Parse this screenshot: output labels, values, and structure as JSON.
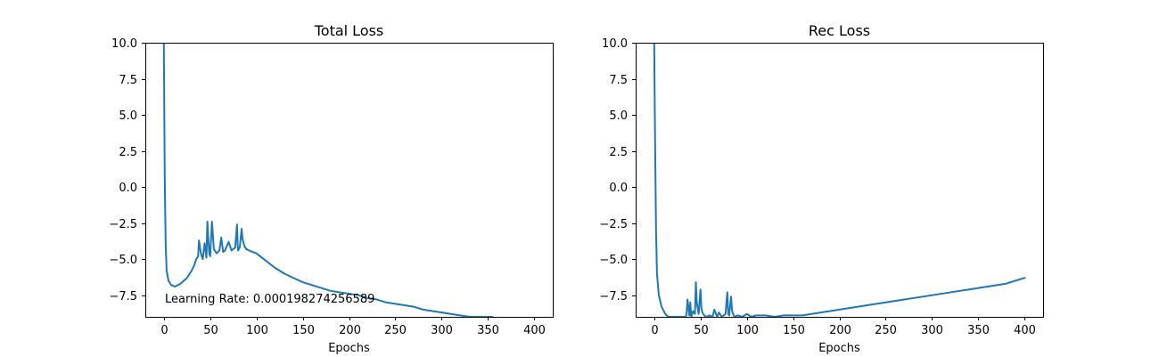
{
  "chart_data": [
    {
      "type": "line",
      "title": "Total Loss",
      "xlabel": "Epochs",
      "ylabel": "",
      "xlim": [
        -20,
        420
      ],
      "ylim": [
        -9.0,
        10.0
      ],
      "xticks": [
        0,
        50,
        100,
        150,
        200,
        250,
        300,
        350,
        400
      ],
      "yticks": [
        -7.5,
        -5.0,
        -2.5,
        0.0,
        2.5,
        5.0,
        7.5,
        10.0
      ],
      "xtick_labels": [
        "0",
        "50",
        "100",
        "150",
        "200",
        "250",
        "300",
        "350",
        "400"
      ],
      "ytick_labels": [
        "−7.5",
        "−5.0",
        "−2.5",
        "0.0",
        "2.5",
        "5.0",
        "7.5",
        "10.0"
      ],
      "annotation": "Learning Rate: 0.000198274256589",
      "grid": false,
      "color": "#1f77b4",
      "series": [
        {
          "x": [
            0,
            1,
            2,
            3,
            5,
            8,
            12,
            18,
            25,
            30,
            33,
            35,
            37,
            38,
            40,
            42,
            44,
            46,
            47,
            49,
            50,
            52,
            54,
            57,
            60,
            62,
            64,
            66,
            70,
            73,
            75,
            77,
            79,
            80,
            82,
            84,
            85,
            87,
            89,
            92,
            96,
            100,
            110,
            120,
            130,
            140,
            150,
            160,
            170,
            180,
            190,
            200,
            210,
            220,
            230,
            240,
            250,
            260,
            270,
            280,
            290,
            300,
            310,
            320,
            330,
            340,
            350,
            355
          ],
          "y": [
            10.0,
            0.5,
            -4.0,
            -5.8,
            -6.5,
            -6.8,
            -6.9,
            -6.7,
            -6.3,
            -5.8,
            -5.4,
            -5.0,
            -4.8,
            -3.7,
            -4.6,
            -5.0,
            -3.9,
            -4.9,
            -2.4,
            -4.6,
            -4.8,
            -2.4,
            -4.3,
            -4.6,
            -4.4,
            -3.5,
            -4.5,
            -4.4,
            -3.8,
            -4.4,
            -4.3,
            -4.2,
            -2.6,
            -4.4,
            -4.2,
            -2.9,
            -3.6,
            -4.1,
            -4.3,
            -4.4,
            -4.5,
            -4.6,
            -5.1,
            -5.6,
            -6.0,
            -6.3,
            -6.6,
            -6.8,
            -7.0,
            -7.2,
            -7.3,
            -7.4,
            -7.5,
            -7.7,
            -7.8,
            -8.0,
            -8.1,
            -8.2,
            -8.3,
            -8.5,
            -8.6,
            -8.7,
            -8.8,
            -8.9,
            -9.0,
            -9.0,
            -9.0,
            -9.0
          ]
        }
      ]
    },
    {
      "type": "line",
      "title": "Rec Loss",
      "xlabel": "Epochs",
      "ylabel": "",
      "xlim": [
        -20,
        420
      ],
      "ylim": [
        -9.0,
        10.0
      ],
      "xticks": [
        0,
        50,
        100,
        150,
        200,
        250,
        300,
        350,
        400
      ],
      "yticks": [
        -7.5,
        -5.0,
        -2.5,
        0.0,
        2.5,
        5.0,
        7.5,
        10.0
      ],
      "xtick_labels": [
        "0",
        "50",
        "100",
        "150",
        "200",
        "250",
        "300",
        "350",
        "400"
      ],
      "ytick_labels": [
        "−7.5",
        "−5.0",
        "−2.5",
        "0.0",
        "2.5",
        "5.0",
        "7.5",
        "10.0"
      ],
      "grid": false,
      "color": "#1f77b4",
      "series": [
        {
          "x": [
            0,
            1,
            2,
            3,
            5,
            8,
            12,
            15,
            20,
            25,
            30,
            34,
            35,
            36,
            38,
            39,
            40,
            42,
            44,
            45,
            46,
            48,
            50,
            51,
            52,
            54,
            56,
            60,
            63,
            65,
            68,
            70,
            73,
            75,
            77,
            79,
            80,
            81,
            83,
            84,
            85,
            87,
            90,
            95,
            100,
            105,
            110,
            120,
            130,
            140,
            150,
            160,
            170,
            180,
            190,
            200,
            210,
            220,
            230,
            240,
            250,
            260,
            270,
            280,
            290,
            300,
            310,
            320,
            330,
            340,
            350,
            360,
            370,
            380,
            390,
            400
          ],
          "y": [
            10.0,
            3.0,
            -3.0,
            -6.0,
            -7.5,
            -8.3,
            -8.8,
            -9.0,
            -9.0,
            -9.0,
            -9.0,
            -9.0,
            -8.8,
            -7.8,
            -8.9,
            -8.0,
            -9.0,
            -8.6,
            -8.8,
            -6.6,
            -8.0,
            -8.8,
            -7.1,
            -8.4,
            -8.7,
            -8.9,
            -9.0,
            -8.9,
            -9.0,
            -8.5,
            -9.0,
            -8.7,
            -9.0,
            -8.9,
            -8.8,
            -7.3,
            -8.8,
            -8.9,
            -7.6,
            -8.5,
            -8.8,
            -9.0,
            -8.9,
            -9.0,
            -8.8,
            -9.0,
            -8.9,
            -8.9,
            -9.0,
            -8.9,
            -8.9,
            -8.9,
            -8.8,
            -8.7,
            -8.6,
            -8.5,
            -8.4,
            -8.3,
            -8.2,
            -8.1,
            -8.0,
            -7.9,
            -7.8,
            -7.7,
            -7.6,
            -7.5,
            -7.4,
            -7.3,
            -7.2,
            -7.1,
            -7.0,
            -6.9,
            -6.8,
            -6.7,
            -6.5,
            -6.3
          ]
        }
      ]
    }
  ]
}
